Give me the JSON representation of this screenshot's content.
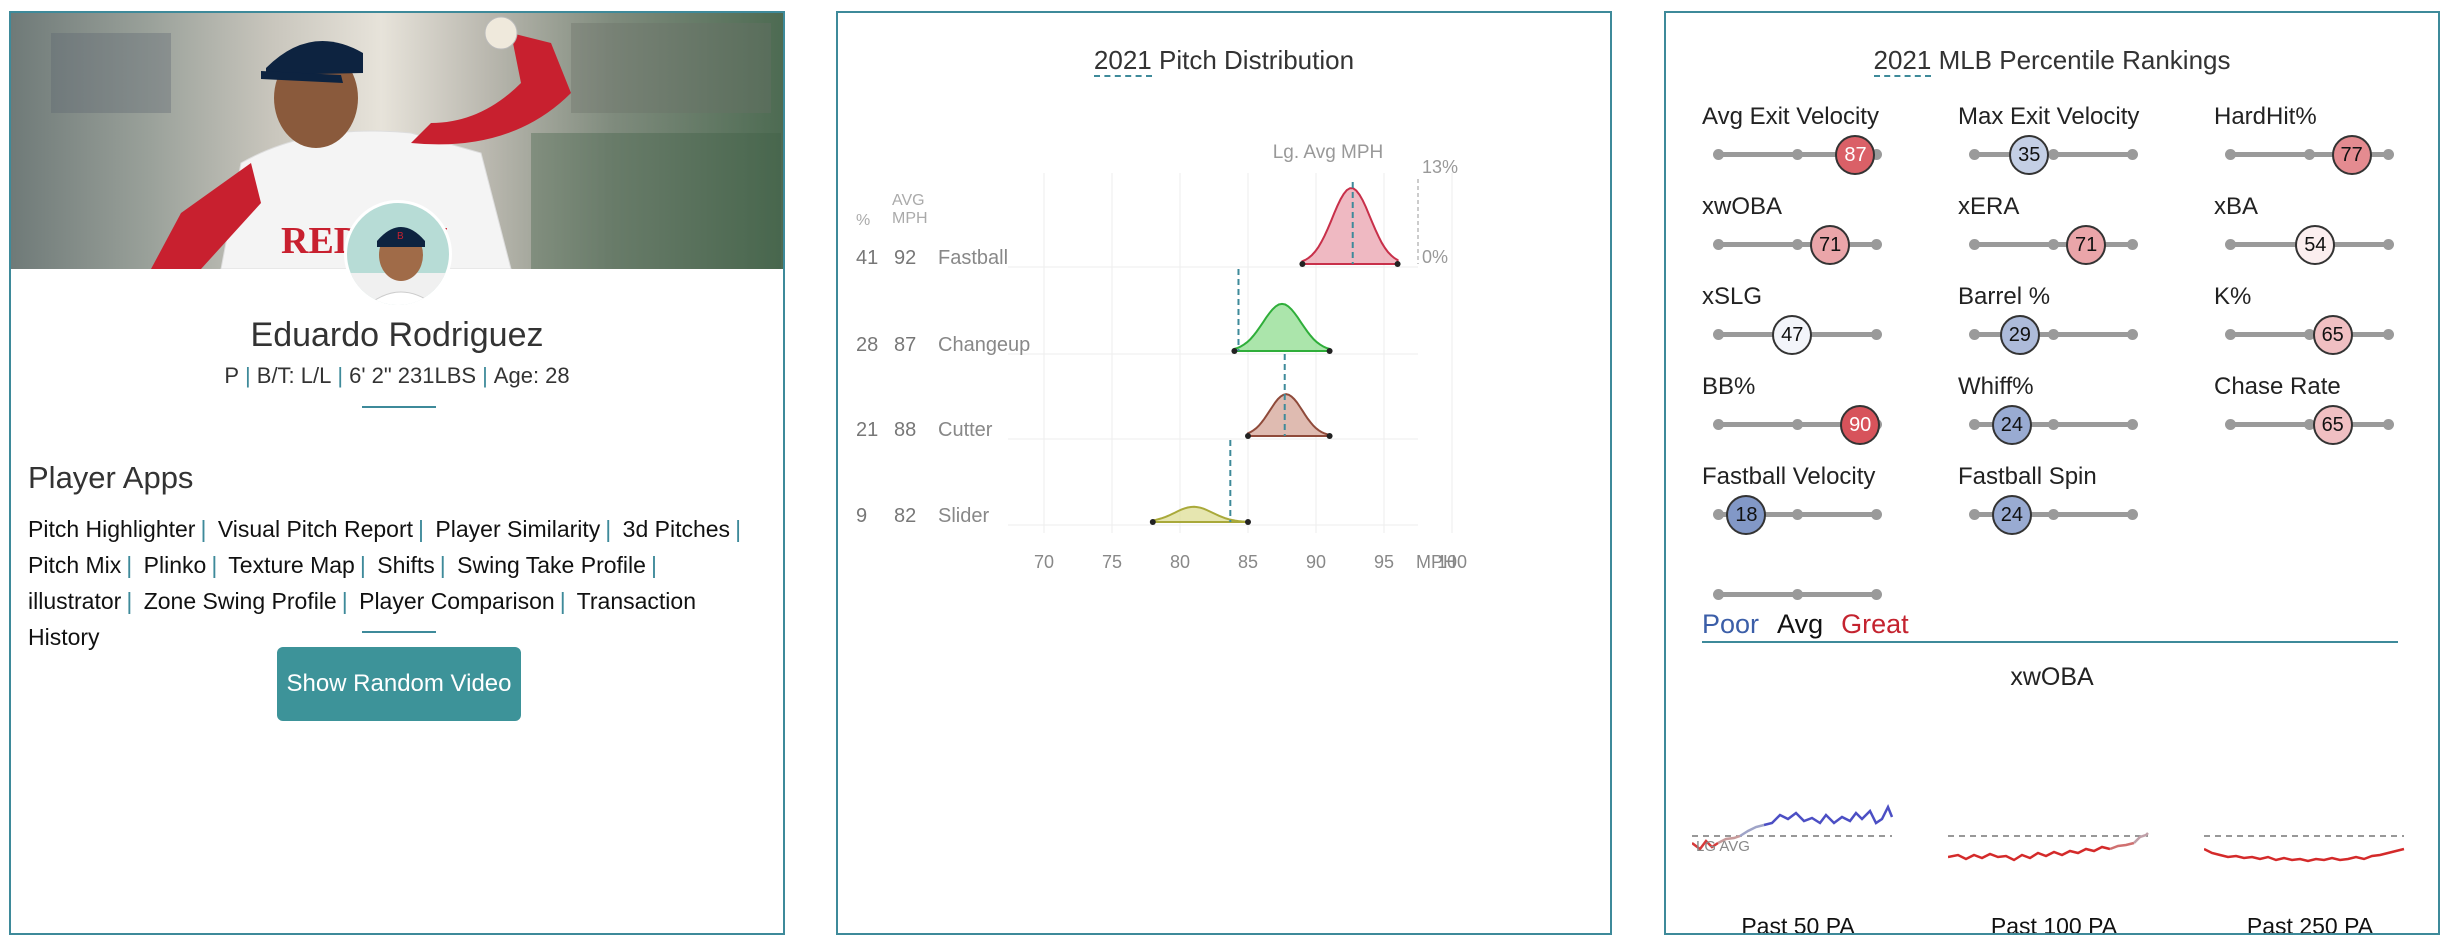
{
  "bio": {
    "name": "Eduardo Rodriguez",
    "position": "P",
    "bats_throws": "B/T: L/L",
    "height_weight": "6' 2\" 231LBS",
    "age": "Age: 28",
    "apps_title": "Player Apps",
    "apps": [
      "Pitch Highlighter",
      "Visual Pitch Report",
      "Player Similarity",
      "3d Pitches",
      "Pitch Mix",
      "Plinko",
      "Texture Map",
      "Shifts",
      "Swing Take Profile",
      "illustrator",
      "Zone Swing Profile",
      "Player Comparison",
      "Transaction History"
    ],
    "video_button": "Show Random Video",
    "jersey_text": "RED SOX"
  },
  "pitch": {
    "title_year": "2021",
    "title_rest": " Pitch Distribution",
    "lg_avg_label": "Lg. Avg MPH",
    "col_pct": "%",
    "col_avg_1": "AVG",
    "col_avg_2": "MPH",
    "scale_max": "13%",
    "scale_min": "0%",
    "axis_unit": "MPH",
    "colors": {
      "Fastball": "#e9a1ad",
      "Changeup": "#8fdc8f",
      "Cutter": "#d4a497",
      "Slider": "#dede96"
    },
    "chart_data": {
      "type": "area",
      "xlabel": "MPH",
      "xlim": [
        70,
        100
      ],
      "xticks": [
        "70",
        "75",
        "80",
        "85",
        "90",
        "95",
        "100"
      ],
      "series": [
        {
          "name": "Fastball",
          "pct": "41",
          "avg": "92",
          "min": 89,
          "max": 96,
          "peak": 92.6,
          "height": 1.0,
          "lg_avg": 92.7
        },
        {
          "name": "Changeup",
          "pct": "28",
          "avg": "87",
          "min": 84,
          "max": 91,
          "peak": 87.5,
          "height": 0.62,
          "lg_avg": 84.3
        },
        {
          "name": "Cutter",
          "pct": "21",
          "avg": "88",
          "min": 85,
          "max": 91,
          "peak": 87.8,
          "height": 0.55,
          "lg_avg": 87.7
        },
        {
          "name": "Slider",
          "pct": "9",
          "avg": "82",
          "min": 78,
          "max": 85,
          "peak": 81,
          "height": 0.2,
          "lg_avg": 83.7
        }
      ]
    }
  },
  "pct": {
    "title_year": "2021",
    "title_rest": " MLB Percentile Rankings",
    "metrics": [
      {
        "label": "Avg Exit Velocity",
        "value": 87
      },
      {
        "label": "Max Exit Velocity",
        "value": 35
      },
      {
        "label": "HardHit%",
        "value": 77
      },
      {
        "label": "xwOBA",
        "value": 71
      },
      {
        "label": "xERA",
        "value": 71
      },
      {
        "label": "xBA",
        "value": 54
      },
      {
        "label": "xSLG",
        "value": 47
      },
      {
        "label": "Barrel %",
        "value": 29
      },
      {
        "label": "K%",
        "value": 65
      },
      {
        "label": "BB%",
        "value": 90
      },
      {
        "label": "Whiff%",
        "value": 24
      },
      {
        "label": "Chase Rate",
        "value": 65
      },
      {
        "label": "Fastball Velocity",
        "value": 18
      },
      {
        "label": "Fastball Spin",
        "value": 24
      }
    ],
    "legend": {
      "poor": "Poor",
      "avg": "Avg",
      "great": "Great"
    },
    "xwoba_title": "xwOBA",
    "lg_avg_label": "LG AVG",
    "sparks": [
      {
        "label": "Past 50 PA"
      },
      {
        "label": "Past 100 PA"
      },
      {
        "label": "Past 250 PA"
      }
    ]
  }
}
